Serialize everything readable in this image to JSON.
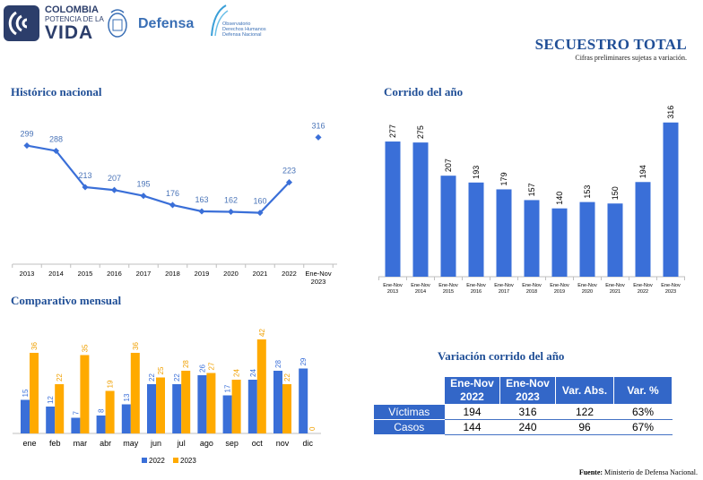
{
  "header": {
    "logo_line1": "COLOMBIA",
    "logo_line2": "POTENCIA DE LA",
    "logo_line3": "VIDA",
    "logo_defensa": "Defensa",
    "obs_line1": "Observatorio",
    "obs_line2": "Derechos Humanos",
    "obs_line3": "Defensa Nacional",
    "title": "SECUESTRO TOTAL",
    "subtitle": "Cifras preliminares sujetas a variación."
  },
  "colors": {
    "blue": "#3a6fd8",
    "orange": "#ffaa00",
    "title_blue": "#1f4e96",
    "table_header": "#3367c8"
  },
  "chart_data": [
    {
      "type": "line",
      "title": "Histórico nacional",
      "x": [
        "2013",
        "2014",
        "2015",
        "2016",
        "2017",
        "2018",
        "2019",
        "2020",
        "2021",
        "2022",
        "Ene-Nov 2023"
      ],
      "series": [
        {
          "values": [
            299,
            288,
            213,
            207,
            195,
            176,
            163,
            162,
            160,
            223,
            316
          ]
        }
      ],
      "note_last_point_disconnected": true
    },
    {
      "type": "bar",
      "title": "Corrido del año",
      "categories": [
        "Ene-Nov 2013",
        "Ene-Nov 2014",
        "Ene-Nov 2015",
        "Ene-Nov 2016",
        "Ene-Nov 2017",
        "Ene-Nov 2018",
        "Ene-Nov 2019",
        "Ene-Nov 2020",
        "Ene-Nov 2021",
        "Ene-Nov 2022",
        "Ene-Nov 2023"
      ],
      "values": [
        277,
        275,
        207,
        193,
        179,
        157,
        140,
        153,
        150,
        194,
        316
      ]
    },
    {
      "type": "bar",
      "title": "Comparativo mensual",
      "categories": [
        "ene",
        "feb",
        "mar",
        "abr",
        "may",
        "jun",
        "jul",
        "ago",
        "sep",
        "oct",
        "nov",
        "dic"
      ],
      "series": [
        {
          "name": "2022",
          "values": [
            15,
            12,
            7,
            8,
            13,
            22,
            22,
            26,
            17,
            24,
            28,
            29
          ]
        },
        {
          "name": "2023",
          "values": [
            36,
            22,
            35,
            19,
            36,
            25,
            28,
            27,
            24,
            42,
            22,
            0
          ]
        }
      ],
      "legend": "bottom"
    },
    {
      "type": "table",
      "title": "Variación corrido del año",
      "columns": [
        "",
        "Ene-Nov 2022",
        "Ene-Nov 2023",
        "Var. Abs.",
        "Var. %"
      ],
      "rows": [
        {
          "label": "Víctimas",
          "v2022": "194",
          "v2023": "316",
          "abs": "122",
          "pct": "63%"
        },
        {
          "label": "Casos",
          "v2022": "144",
          "v2023": "240",
          "abs": "96",
          "pct": "67%"
        }
      ]
    }
  ],
  "footer": {
    "source_label": "Fuente:",
    "source_text": " Ministerio de Defensa Nacional."
  }
}
